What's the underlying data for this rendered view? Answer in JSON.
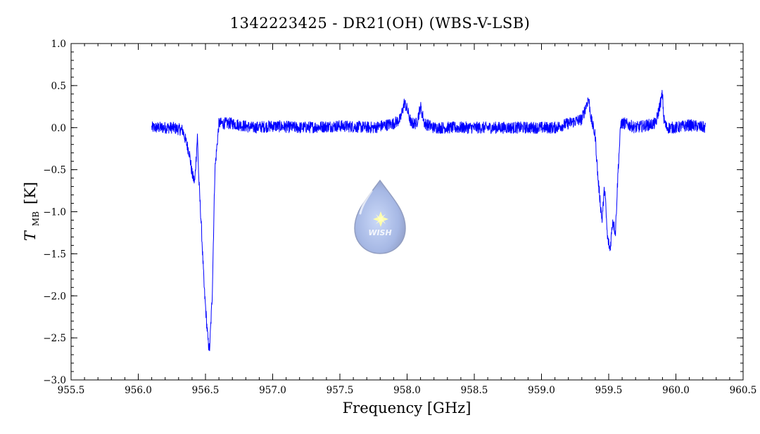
{
  "chart_data": {
    "type": "line",
    "title": "1342223425 - DR21(OH) (WBS-V-LSB)",
    "xlabel": "Frequency [GHz]",
    "ylabel_main": "T",
    "ylabel_sub": "MB",
    "ylabel_unit": "[K]",
    "xlim": [
      955.5,
      960.5
    ],
    "ylim": [
      -3.0,
      1.0
    ],
    "x_ticks": [
      955.5,
      956.0,
      956.5,
      957.0,
      957.5,
      958.0,
      958.5,
      959.0,
      959.5,
      960.0,
      960.5
    ],
    "x_tick_labels": [
      "955.5",
      "956.0",
      "956.5",
      "957.0",
      "957.5",
      "958.0",
      "958.5",
      "959.0",
      "959.5",
      "960.0",
      "960.5"
    ],
    "y_ticks": [
      -3.0,
      -2.5,
      -2.0,
      -1.5,
      -1.0,
      -0.5,
      0.0,
      0.5,
      1.0
    ],
    "y_tick_labels": [
      "−3.0",
      "−2.5",
      "−2.0",
      "−1.5",
      "−1.0",
      "−0.5",
      "0.0",
      "0.5",
      "1.0"
    ],
    "grid": false,
    "line_color": "#0000ff",
    "series": [
      {
        "x": [
          956.1,
          956.25,
          956.33,
          956.38,
          956.4,
          956.42,
          956.44,
          956.45,
          956.47,
          956.49,
          956.51,
          956.52,
          956.53,
          956.55,
          956.57,
          956.6,
          956.7,
          956.85,
          957.0,
          957.2,
          957.5,
          957.75,
          957.9,
          957.95,
          957.98,
          958.0,
          958.03,
          958.07,
          958.1,
          958.13,
          958.2,
          958.5,
          958.8,
          959.1,
          959.3,
          959.35,
          959.37,
          959.4,
          959.42,
          959.45,
          959.47,
          959.49,
          959.51,
          959.53,
          959.55,
          959.57,
          959.59,
          959.62,
          959.7,
          959.85,
          959.9,
          959.91,
          959.93,
          960.0,
          960.1,
          960.22
        ],
        "y": [
          0.0,
          0.0,
          -0.03,
          -0.3,
          -0.55,
          -0.65,
          -0.1,
          -0.6,
          -1.2,
          -1.9,
          -2.35,
          -2.55,
          -2.65,
          -2.0,
          -0.5,
          0.05,
          0.05,
          0.0,
          0.02,
          0.0,
          0.02,
          0.0,
          0.05,
          0.1,
          0.3,
          0.22,
          0.05,
          0.05,
          0.25,
          0.05,
          0.0,
          0.0,
          0.0,
          0.0,
          0.1,
          0.35,
          0.1,
          -0.1,
          -0.6,
          -1.1,
          -0.7,
          -1.3,
          -1.45,
          -1.1,
          -1.25,
          -0.5,
          0.05,
          0.05,
          0.0,
          0.05,
          0.4,
          0.1,
          0.0,
          0.0,
          0.03,
          0.0
        ]
      }
    ]
  },
  "watermark": {
    "label": "WISH"
  }
}
